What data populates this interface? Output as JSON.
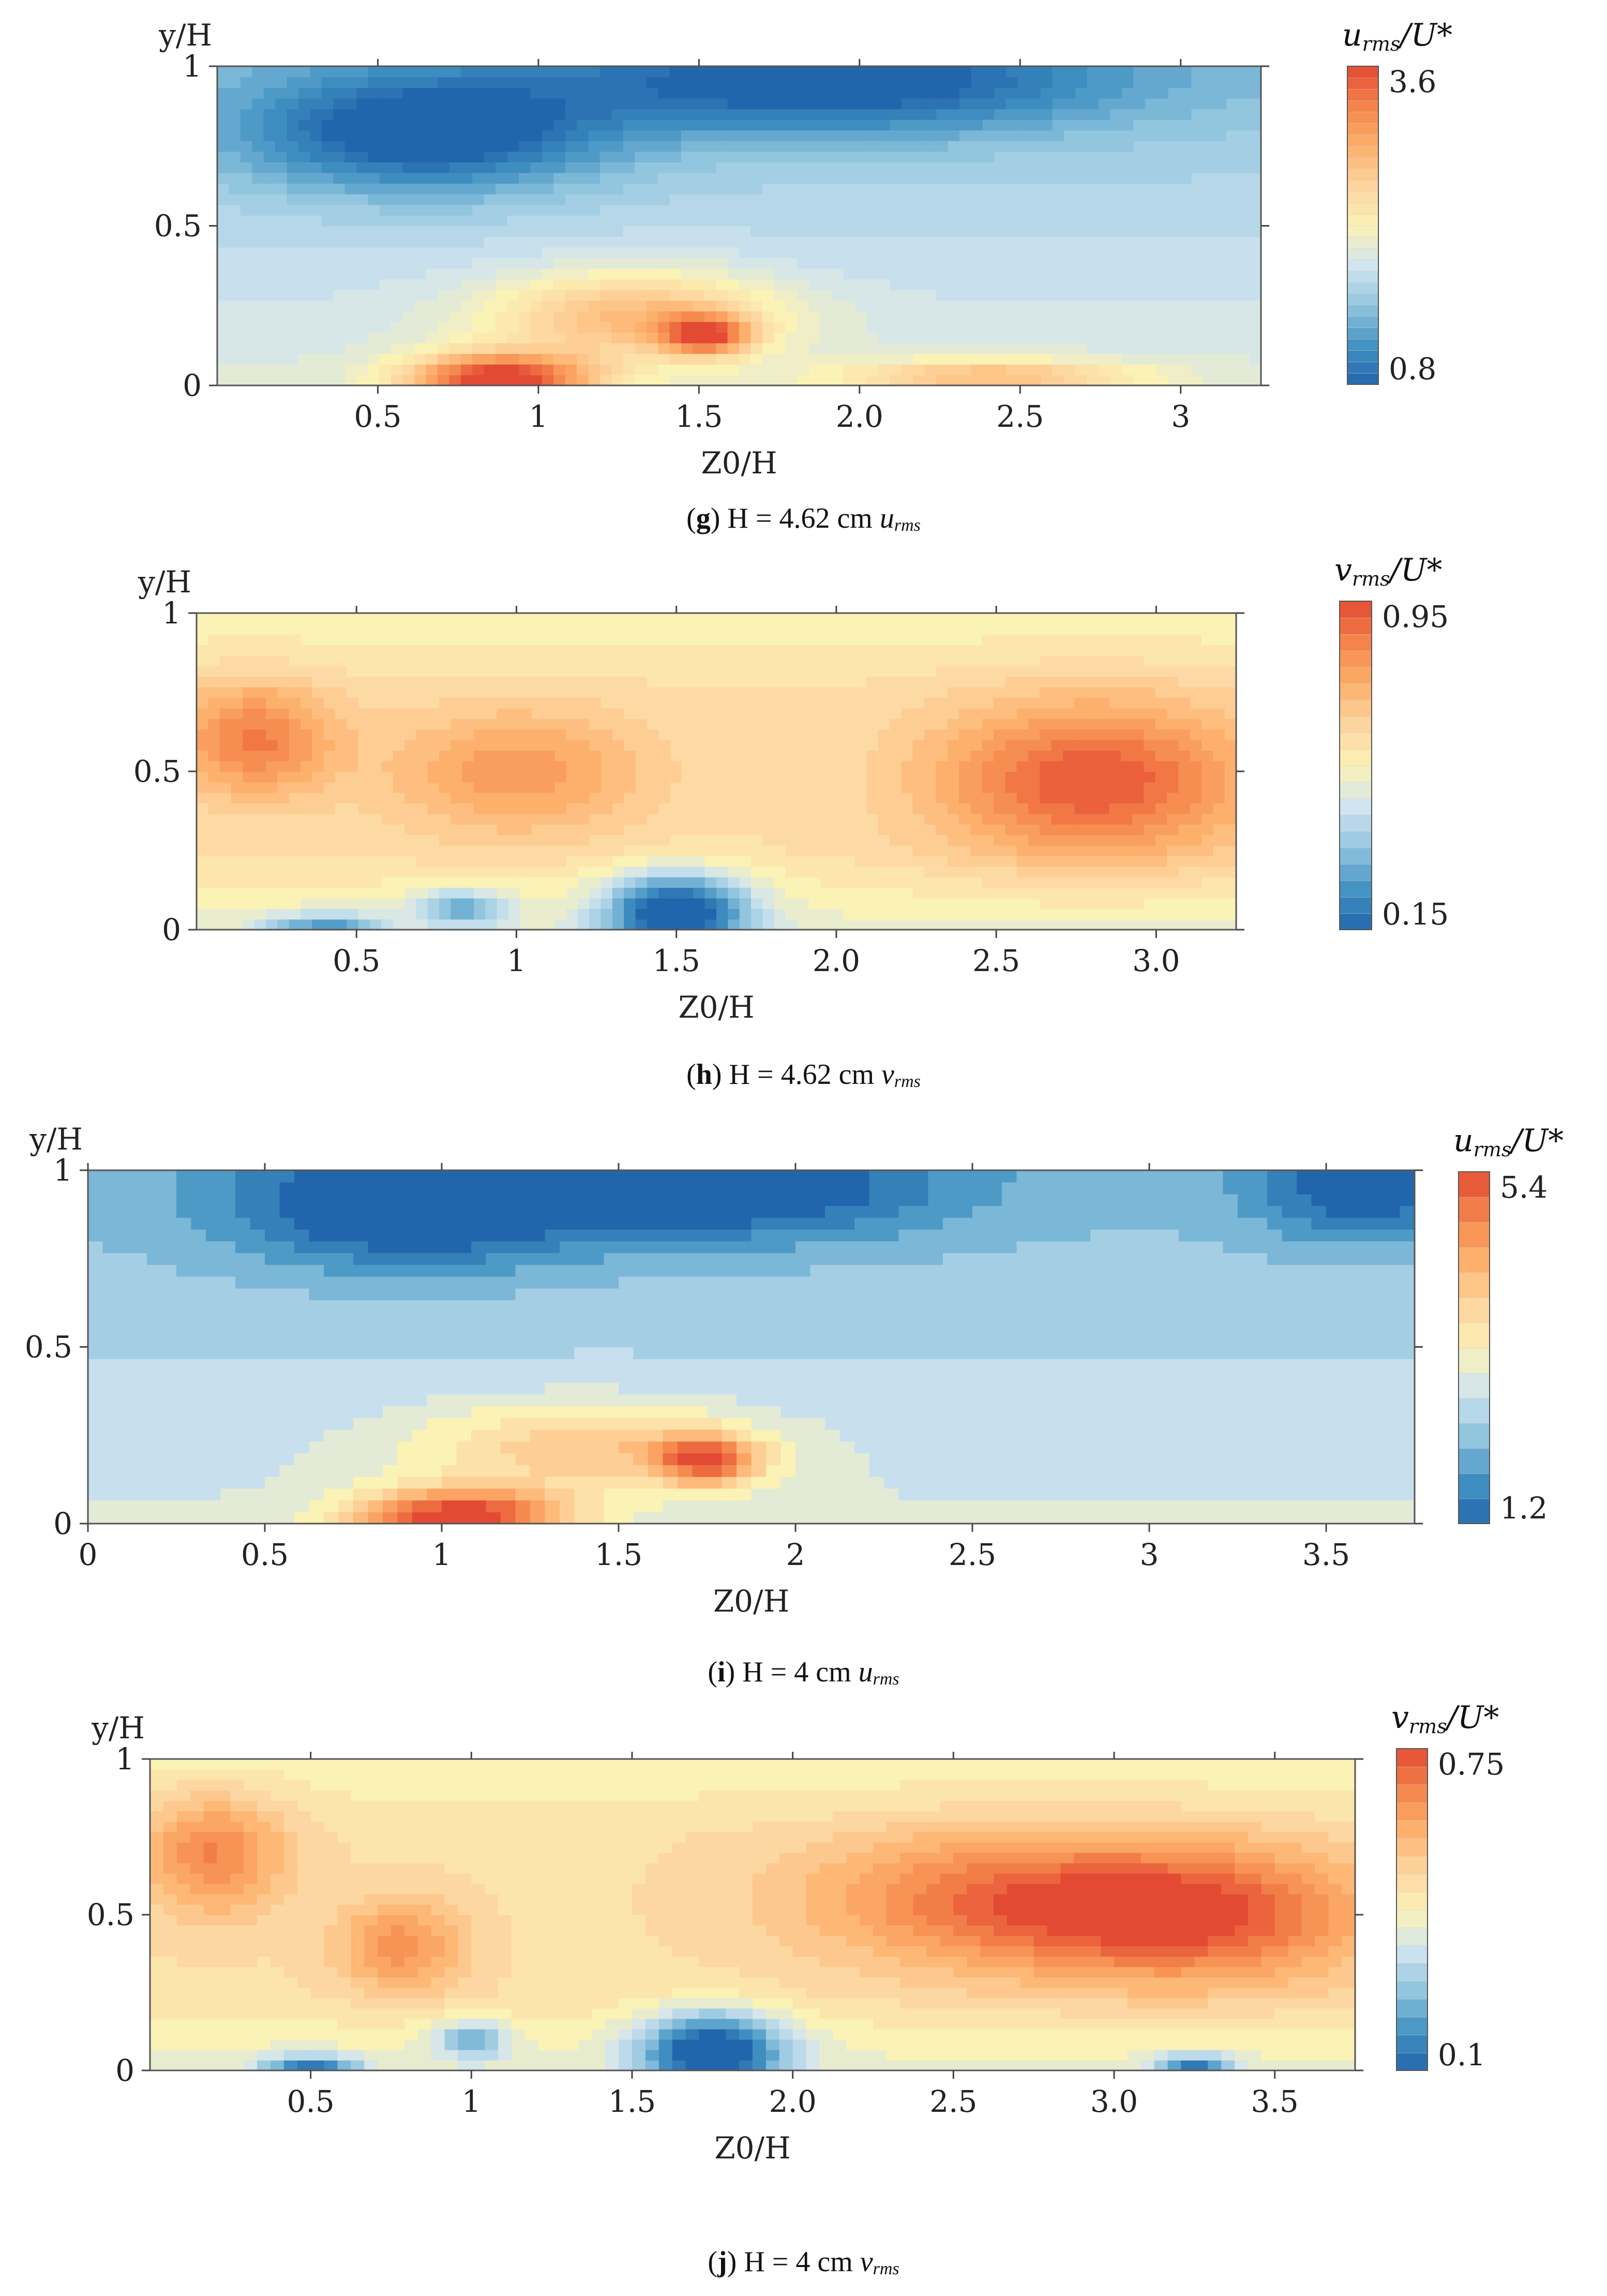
{
  "figure": {
    "panels": [
      {
        "id": "g",
        "caption": {
          "letter": "g",
          "text": "H = 4.62 cm",
          "var": "u",
          "sub": "rms"
        },
        "chart_data": {
          "type": "contour",
          "quantity": "u_rms/U*",
          "colorbar": {
            "title_var": "u",
            "title_sub": "rms",
            "title_rest": "/U*",
            "min": 0.8,
            "max": 3.6,
            "levels": 28,
            "tick_labels": [
              "3.6",
              "0.8"
            ]
          },
          "xlabel": "Z0/H",
          "ylabel": "y/H",
          "xlim": [
            0,
            3.25
          ],
          "ylim": [
            0,
            1
          ],
          "xticks": [
            0.5,
            1,
            1.5,
            2.0,
            2.5,
            3
          ],
          "xtick_labels": [
            "0.5",
            "1",
            "1.5",
            "2.0",
            "2.5",
            "3"
          ],
          "yticks": [
            0,
            0.5,
            1
          ],
          "ytick_labels": [
            "0",
            "0.5",
            "1"
          ],
          "features": [
            {
              "x": 0.88,
              "y": 0.02,
              "value": 3.6,
              "sx": 0.28,
              "sy": 0.08
            },
            {
              "x": 1.52,
              "y": 0.16,
              "value": 3.2,
              "sx": 0.13,
              "sy": 0.06
            },
            {
              "x": 1.3,
              "y": 0.22,
              "value": 2.7,
              "sx": 0.45,
              "sy": 0.14
            },
            {
              "x": 0.64,
              "y": 0.79,
              "value": 0.8,
              "sx": 0.55,
              "sy": 0.18
            },
            {
              "x": 1.9,
              "y": 0.95,
              "value": 0.9,
              "sx": 0.85,
              "sy": 0.16
            },
            {
              "x": 2.4,
              "y": 0.03,
              "value": 2.6,
              "sx": 0.45,
              "sy": 0.05
            }
          ]
        }
      },
      {
        "id": "h",
        "caption": {
          "letter": "h",
          "text": "H = 4.62 cm",
          "var": "v",
          "sub": "rms"
        },
        "chart_data": {
          "type": "contour",
          "quantity": "v_rms/U*",
          "colorbar": {
            "title_var": "v",
            "title_sub": "rms",
            "title_rest": "/U*",
            "min": 0.15,
            "max": 0.95,
            "levels": 20,
            "tick_labels": [
              "0.95",
              "0.15"
            ]
          },
          "xlabel": "Z0/H",
          "ylabel": "y/H",
          "xlim": [
            0,
            3.25
          ],
          "ylim": [
            0,
            1
          ],
          "xticks": [
            0.5,
            1,
            1.5,
            2.0,
            2.5,
            3.0
          ],
          "xtick_labels": [
            "0.5",
            "1",
            "1.5",
            "2.0",
            "2.5",
            "3.0"
          ],
          "yticks": [
            0,
            0.5,
            1
          ],
          "ytick_labels": [
            "0",
            "0.5",
            "1"
          ],
          "features": [
            {
              "x": 2.8,
              "y": 0.47,
              "value": 0.95,
              "sx": 0.5,
              "sy": 0.25
            },
            {
              "x": 0.18,
              "y": 0.6,
              "value": 0.88,
              "sx": 0.25,
              "sy": 0.18
            },
            {
              "x": 1.0,
              "y": 0.5,
              "value": 0.82,
              "sx": 0.4,
              "sy": 0.2
            },
            {
              "x": 1.5,
              "y": 0.06,
              "value": 0.15,
              "sx": 0.22,
              "sy": 0.12
            },
            {
              "x": 0.83,
              "y": 0.07,
              "value": 0.4,
              "sx": 0.15,
              "sy": 0.06
            },
            {
              "x": 0.4,
              "y": 0.0,
              "value": 0.35,
              "sx": 0.18,
              "sy": 0.05
            }
          ]
        }
      },
      {
        "id": "i",
        "caption": {
          "letter": "i",
          "text": "H = 4 cm",
          "var": "u",
          "sub": "rms"
        },
        "chart_data": {
          "type": "contour",
          "quantity": "u_rms/U*",
          "colorbar": {
            "title_var": "u",
            "title_sub": "rms",
            "title_rest": "/U*",
            "min": 1.2,
            "max": 5.4,
            "levels": 14,
            "tick_labels": [
              "5.4",
              "1.2"
            ]
          },
          "xlabel": "Z0/H",
          "ylabel": "y/H",
          "xlim": [
            0,
            3.75
          ],
          "ylim": [
            0,
            1
          ],
          "xticks": [
            0,
            0.5,
            1,
            1.5,
            2,
            2.5,
            3,
            3.5
          ],
          "xtick_labels": [
            "0",
            "0.5",
            "1",
            "1.5",
            "2",
            "2.5",
            "3",
            "3.5"
          ],
          "yticks": [
            0,
            0.5,
            1
          ],
          "ytick_labels": [
            "0",
            "0.5",
            "1"
          ],
          "features": [
            {
              "x": 1.05,
              "y": 0.02,
              "value": 5.4,
              "sx": 0.3,
              "sy": 0.08
            },
            {
              "x": 1.75,
              "y": 0.18,
              "value": 4.8,
              "sx": 0.15,
              "sy": 0.07
            },
            {
              "x": 1.4,
              "y": 0.22,
              "value": 3.9,
              "sx": 0.5,
              "sy": 0.13
            },
            {
              "x": 0.9,
              "y": 0.9,
              "value": 1.2,
              "sx": 0.5,
              "sy": 0.18
            },
            {
              "x": 1.8,
              "y": 0.95,
              "value": 1.3,
              "sx": 0.6,
              "sy": 0.15
            },
            {
              "x": 3.6,
              "y": 0.95,
              "value": 1.5,
              "sx": 0.3,
              "sy": 0.15
            }
          ]
        }
      },
      {
        "id": "j",
        "caption": {
          "letter": "j",
          "text": "H = 4 cm",
          "var": "v",
          "sub": "rms"
        },
        "chart_data": {
          "type": "contour",
          "quantity": "v_rms/U*",
          "colorbar": {
            "title_var": "v",
            "title_sub": "rms",
            "title_rest": "/U*",
            "min": 0.1,
            "max": 0.75,
            "levels": 18,
            "tick_labels": [
              "0.75",
              "0.1"
            ]
          },
          "xlabel": "Z0/H",
          "ylabel": "y/H",
          "xlim": [
            0,
            3.75
          ],
          "ylim": [
            0,
            1
          ],
          "xticks": [
            0.5,
            1,
            1.5,
            2.0,
            2.5,
            3.0,
            3.5
          ],
          "xtick_labels": [
            "0.5",
            "1",
            "1.5",
            "2.0",
            "2.5",
            "3.0",
            "3.5"
          ],
          "yticks": [
            0,
            0.5,
            1
          ],
          "ytick_labels": [
            "0",
            "0.5",
            "1"
          ],
          "features": [
            {
              "x": 3.25,
              "y": 0.5,
              "value": 0.75,
              "sx": 0.55,
              "sy": 0.22
            },
            {
              "x": 2.6,
              "y": 0.55,
              "value": 0.68,
              "sx": 0.6,
              "sy": 0.22
            },
            {
              "x": 0.2,
              "y": 0.7,
              "value": 0.68,
              "sx": 0.22,
              "sy": 0.2
            },
            {
              "x": 0.78,
              "y": 0.4,
              "value": 0.66,
              "sx": 0.2,
              "sy": 0.15
            },
            {
              "x": 1.75,
              "y": 0.07,
              "value": 0.1,
              "sx": 0.22,
              "sy": 0.12
            },
            {
              "x": 0.5,
              "y": 0.0,
              "value": 0.2,
              "sx": 0.15,
              "sy": 0.05
            },
            {
              "x": 1.0,
              "y": 0.1,
              "value": 0.3,
              "sx": 0.12,
              "sy": 0.06
            },
            {
              "x": 3.25,
              "y": 0.0,
              "value": 0.2,
              "sx": 0.12,
              "sy": 0.05
            }
          ]
        }
      }
    ]
  },
  "palette": [
    "#2166ac",
    "#4393c3",
    "#92c5de",
    "#d1e5f0",
    "#fbf2b5",
    "#fdd49e",
    "#fdb06b",
    "#f4844a",
    "#e34a33"
  ]
}
